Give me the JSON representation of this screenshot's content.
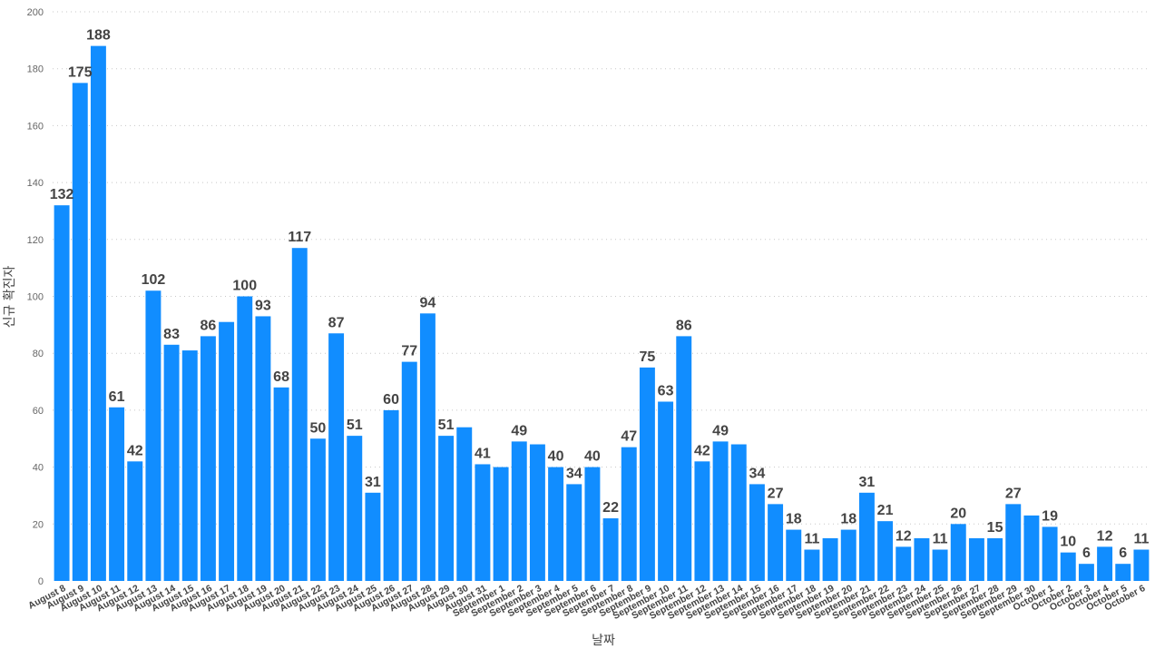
{
  "chart_data": {
    "type": "bar",
    "xlabel": "날짜",
    "ylabel": "신규 확진자",
    "ylim": [
      0,
      200
    ],
    "yticks": [
      0,
      20,
      40,
      60,
      80,
      100,
      120,
      140,
      160,
      180,
      200
    ],
    "grid": true,
    "color": "#118DFF",
    "categories": [
      "August 8",
      "August 9",
      "August 10",
      "August 11",
      "August 12",
      "August 13",
      "August 14",
      "August 15",
      "August 16",
      "August 17",
      "August 18",
      "August 19",
      "August 20",
      "August 21",
      "August 22",
      "August 23",
      "August 24",
      "August 25",
      "August 26",
      "August 27",
      "August 28",
      "August 29",
      "August 30",
      "August 31",
      "September 1",
      "September 2",
      "September 3",
      "September 4",
      "September 5",
      "September 6",
      "September 7",
      "September 8",
      "September 9",
      "September 10",
      "September 11",
      "September 12",
      "September 13",
      "September 14",
      "September 15",
      "September 16",
      "September 17",
      "September 18",
      "September 19",
      "September 20",
      "September 21",
      "September 22",
      "September 23",
      "September 24",
      "September 25",
      "September 26",
      "September 27",
      "September 28",
      "September 29",
      "September 30",
      "October 1",
      "October 2",
      "October 3",
      "October 4",
      "October 5",
      "October 6"
    ],
    "values": [
      132,
      175,
      188,
      61,
      42,
      102,
      83,
      81,
      86,
      91,
      100,
      93,
      68,
      117,
      50,
      87,
      51,
      31,
      60,
      77,
      94,
      51,
      54,
      41,
      40,
      49,
      48,
      40,
      34,
      40,
      22,
      47,
      75,
      63,
      86,
      42,
      49,
      48,
      34,
      27,
      18,
      11,
      15,
      18,
      31,
      21,
      12,
      15,
      11,
      20,
      15,
      15,
      27,
      23,
      19,
      10,
      6,
      12,
      6,
      11
    ],
    "labeled": [
      true,
      true,
      true,
      true,
      true,
      true,
      true,
      false,
      true,
      false,
      true,
      true,
      true,
      true,
      true,
      true,
      true,
      true,
      true,
      true,
      true,
      true,
      false,
      true,
      false,
      true,
      false,
      true,
      true,
      true,
      true,
      true,
      true,
      true,
      true,
      true,
      true,
      false,
      true,
      true,
      true,
      true,
      false,
      true,
      true,
      true,
      true,
      false,
      true,
      true,
      false,
      true,
      true,
      false,
      true,
      true,
      true,
      true,
      true,
      true
    ]
  }
}
